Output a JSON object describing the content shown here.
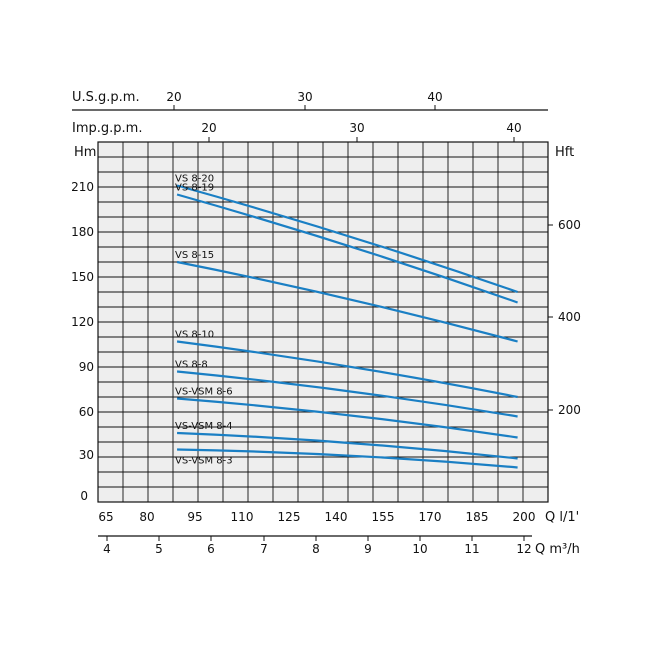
{
  "chart_data": {
    "type": "line",
    "title": "",
    "x": [
      88,
      200
    ],
    "series": [
      {
        "name": "VS 8-20",
        "values": [
          206,
          135
        ]
      },
      {
        "name": "VS 8-19",
        "values": [
          200,
          128
        ]
      },
      {
        "name": "VS 8-15",
        "values": [
          155,
          102
        ]
      },
      {
        "name": "VS 8-10",
        "values": [
          102,
          65
        ]
      },
      {
        "name": "VS 8-8",
        "values": [
          82,
          52
        ]
      },
      {
        "name": "VS-VSM 8-6",
        "values": [
          64,
          38
        ]
      },
      {
        "name": "VS-VSM 8-4",
        "values": [
          41,
          24
        ]
      },
      {
        "name": "VS-VSM 8-3",
        "values": [
          30,
          18
        ]
      }
    ],
    "axes": {
      "bottom": {
        "label": "Q l/1'",
        "ticks": [
          "65",
          "80",
          "95",
          "110",
          "125",
          "140",
          "155",
          "170",
          "185",
          "200"
        ],
        "range": [
          62,
          210
        ]
      },
      "bottom2": {
        "label": "Q m³/h",
        "ticks": [
          "4",
          "5",
          "6",
          "7",
          "8",
          "9",
          "10",
          "11",
          "12"
        ]
      },
      "top_imp": {
        "label": "Imp.g.p.m.",
        "ticks": [
          "20",
          "30",
          "40"
        ]
      },
      "top_us": {
        "label": "U.S.g.p.m.",
        "ticks": [
          "20",
          "30",
          "40"
        ]
      },
      "left": {
        "label": "Hm",
        "ticks": [
          "0",
          "30",
          "60",
          "90",
          "120",
          "150",
          "180",
          "210"
        ],
        "range": [
          -5,
          235
        ]
      },
      "right": {
        "label": "Hft",
        "ticks": [
          "200",
          "400",
          "600"
        ]
      }
    },
    "grid": true,
    "colors": {
      "curve": "#1a7fc4",
      "plot_bg": "#eeeeee",
      "grid": "#111111"
    }
  }
}
